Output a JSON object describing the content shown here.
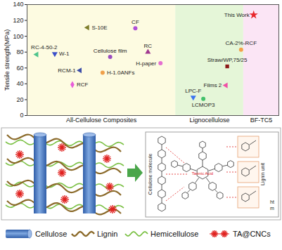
{
  "chart_data": {
    "type": "scatter",
    "ylabel": "Tensile strength(MPa)",
    "ylim": [
      0,
      140
    ],
    "yticks": [
      0,
      20,
      40,
      60,
      80,
      100,
      120,
      140
    ],
    "xlim": [
      0,
      100
    ],
    "tick_labels": "y",
    "grid": false,
    "regions": [
      {
        "label": "All-Cellulose Composites",
        "from": 0,
        "to": 59,
        "color": "#fdfbe1"
      },
      {
        "label": "Lignocellulose",
        "from": 59,
        "to": 86,
        "color": "#e5f6d8"
      },
      {
        "label": "BF-TC5",
        "from": 86,
        "to": 100,
        "color": "#fbe5f5"
      }
    ],
    "points": [
      {
        "label": "RC-4-50-2",
        "x": 3.8,
        "y": 77,
        "color": "#4fc48c",
        "marker": "triangle-left"
      },
      {
        "label": "W-1",
        "x": 11,
        "y": 78,
        "color": "#3b4fc9",
        "marker": "triangle-down"
      },
      {
        "label": "S-10E",
        "x": 24,
        "y": 111,
        "color": "#7d7d2a",
        "marker": "triangle-left"
      },
      {
        "label": "RCF",
        "x": 18,
        "y": 39,
        "color": "#e85dd9",
        "marker": "diamond"
      },
      {
        "label": "RCM-1",
        "x": 21,
        "y": 57,
        "color": "#3d4ea8",
        "marker": "triangle-left"
      },
      {
        "label": "H-1.0ANFs",
        "x": 30,
        "y": 54,
        "color": "#f0a04b",
        "marker": "circle"
      },
      {
        "label": "Cellulose film",
        "x": 33,
        "y": 74,
        "color": "#9b4cc0",
        "marker": "circle"
      },
      {
        "label": "CF",
        "x": 43,
        "y": 110,
        "color": "#b04fd8",
        "marker": "circle"
      },
      {
        "label": "RC",
        "x": 48,
        "y": 80,
        "color": "#a0388f",
        "marker": "triangle-up"
      },
      {
        "label": "H-paper",
        "x": 53,
        "y": 66,
        "color": "#e56fd0",
        "marker": "circle"
      },
      {
        "label": "LPC-F",
        "x": 66,
        "y": 23,
        "color": "#3b73f0",
        "marker": "triangle-down"
      },
      {
        "label": "LCMOP3",
        "x": 70,
        "y": 21,
        "color": "#43c16b",
        "marker": "circle"
      },
      {
        "label": "Films 2",
        "x": 79,
        "y": 38,
        "color": "#f04fa6",
        "marker": "triangle-left"
      },
      {
        "label": "Straw/WP,75/25",
        "x": 79.5,
        "y": 62,
        "color": "#8b1a1a",
        "marker": "square"
      },
      {
        "label": "CA-2%-RCF",
        "x": 85,
        "y": 83,
        "color": "#f4a04a",
        "marker": "circle"
      },
      {
        "label": "This Work",
        "x": 90,
        "y": 127,
        "color": "#e8262b",
        "marker": "star"
      }
    ]
  },
  "diagram": {
    "right_panel": {
      "cellulose_label": "Cellulose molecule",
      "tannic_acid_label": "Tannic Acid",
      "lignin_label": "Lignin unit",
      "edge_texts": [
        "ht",
        "m"
      ]
    },
    "legend": [
      {
        "label": "Cellulose",
        "color": "#2f5da8"
      },
      {
        "label": "Lignin",
        "color": "#8b6a2a"
      },
      {
        "label": "Hemicellulose",
        "color": "#7ac043"
      },
      {
        "label": "TA@CNCs",
        "color": "#e0201e"
      }
    ]
  }
}
